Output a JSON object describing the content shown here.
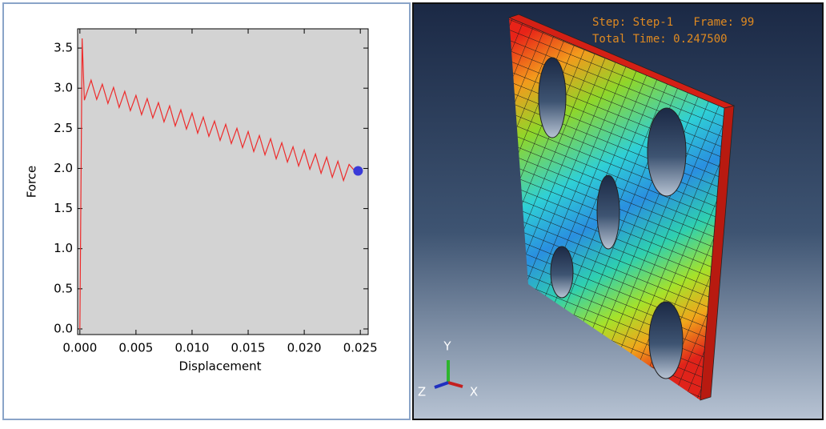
{
  "chart_data": {
    "type": "line",
    "xlabel": "Displacement",
    "ylabel": "Force",
    "color": "#ee2b2b",
    "x": [
      0,
      0.0002,
      0.0004,
      0.001,
      0.0015,
      0.002,
      0.0025,
      0.003,
      0.0035,
      0.004,
      0.0045,
      0.005,
      0.0055,
      0.006,
      0.0065,
      0.007,
      0.0075,
      0.008,
      0.0085,
      0.009,
      0.0095,
      0.01,
      0.0105,
      0.011,
      0.0115,
      0.012,
      0.0125,
      0.013,
      0.0135,
      0.014,
      0.0145,
      0.015,
      0.0155,
      0.016,
      0.0165,
      0.017,
      0.0175,
      0.018,
      0.0185,
      0.019,
      0.0195,
      0.02,
      0.0205,
      0.021,
      0.0215,
      0.022,
      0.0225,
      0.023,
      0.0235,
      0.024,
      0.0245
    ],
    "values": [
      0,
      3.62,
      2.85,
      3.1,
      2.86,
      3.05,
      2.81,
      3.01,
      2.76,
      2.96,
      2.72,
      2.91,
      2.67,
      2.87,
      2.63,
      2.82,
      2.58,
      2.78,
      2.53,
      2.73,
      2.49,
      2.69,
      2.44,
      2.64,
      2.4,
      2.59,
      2.35,
      2.55,
      2.31,
      2.5,
      2.26,
      2.46,
      2.21,
      2.41,
      2.17,
      2.37,
      2.12,
      2.32,
      2.08,
      2.27,
      2.03,
      2.23,
      1.99,
      2.18,
      1.94,
      2.14,
      1.89,
      2.09,
      1.85,
      2.05,
      1.97
    ],
    "current_point": {
      "x": 0.0248,
      "y": 1.97,
      "color": "#3a3ad8"
    },
    "xlim": [
      -0.0002,
      0.0257
    ],
    "ylim": [
      -0.07,
      3.74
    ],
    "xticks": [
      {
        "value": 0,
        "label": "0.000"
      },
      {
        "value": 0.005,
        "label": "0.005"
      },
      {
        "value": 0.01,
        "label": "0.010"
      },
      {
        "value": 0.015,
        "label": "0.015"
      },
      {
        "value": 0.02,
        "label": "0.020"
      },
      {
        "value": 0.025,
        "label": "0.025"
      }
    ],
    "yticks": [
      {
        "value": 0,
        "label": "0.0"
      },
      {
        "value": 0.5,
        "label": "0.5"
      },
      {
        "value": 1,
        "label": "1.0"
      },
      {
        "value": 1.5,
        "label": "1.5"
      },
      {
        "value": 2,
        "label": "2.0"
      },
      {
        "value": 2.5,
        "label": "2.5"
      },
      {
        "value": 3,
        "label": "3.0"
      },
      {
        "value": 3.5,
        "label": "3.5"
      }
    ]
  },
  "viewport": {
    "step_info": "Step: Step-1   Frame: 99",
    "time_info": "Total Time: 0.247500",
    "triad": {
      "y": "Y",
      "z": "Z",
      "x": "X"
    }
  }
}
